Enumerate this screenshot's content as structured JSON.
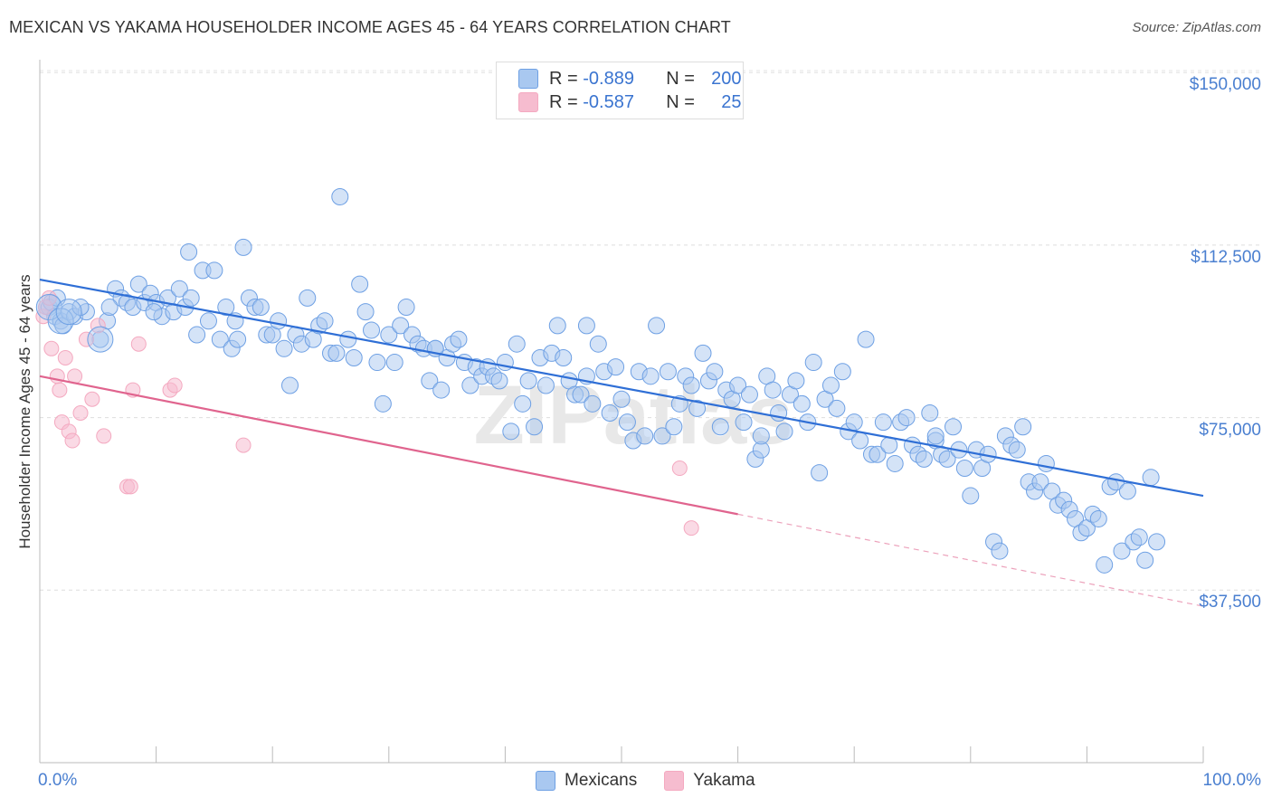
{
  "title": "MEXICAN VS YAKAMA HOUSEHOLDER INCOME AGES 45 - 64 YEARS CORRELATION CHART",
  "source": "Source: ZipAtlas.com",
  "watermark": "ZIPatlas",
  "legend_top": {
    "rows": [
      {
        "r_label": "R =",
        "r_value": "-0.889",
        "n_label": "N =",
        "n_value": "200",
        "color": "#a9c8f0"
      },
      {
        "r_label": "R =",
        "r_value": "-0.587",
        "n_label": "N =",
        "n_value": "25",
        "color": "#f6bccf"
      }
    ]
  },
  "legend_bottom": [
    {
      "label": "Mexicans",
      "color": "#a9c8f0"
    },
    {
      "label": "Yakama",
      "color": "#f6bccf"
    }
  ],
  "chart_data": {
    "type": "scatter",
    "xlabel": "",
    "ylabel": "Householder Income Ages 45 - 64 years",
    "xlim": [
      0,
      100
    ],
    "ylim": [
      0,
      152000
    ],
    "x_tick_labels": [
      "0.0%",
      "100.0%"
    ],
    "y_ticks": [
      37500,
      75000,
      112500,
      150000
    ],
    "y_tick_labels": [
      "$37,500",
      "$75,000",
      "$112,500",
      "$150,000"
    ],
    "grid": true,
    "legend_position": "top-center",
    "series": [
      {
        "name": "Mexicans",
        "color": "#6ea0e4",
        "trend": {
          "x": [
            0,
            100
          ],
          "y": [
            105000,
            58000
          ],
          "color": "#2f6fd6"
        },
        "points": [
          [
            0.8,
            99000
          ],
          [
            1.0,
            100000
          ],
          [
            1.3,
            97000
          ],
          [
            1.8,
            96000
          ],
          [
            2.0,
            95000
          ],
          [
            2.5,
            98000
          ],
          [
            3.0,
            97000
          ],
          [
            4.0,
            98000
          ],
          [
            5.2,
            92000
          ],
          [
            5.8,
            96000
          ],
          [
            6.5,
            103000
          ],
          [
            7.0,
            101000
          ],
          [
            7.5,
            100000
          ],
          [
            8.0,
            99000
          ],
          [
            8.5,
            104000
          ],
          [
            9.0,
            100000
          ],
          [
            9.5,
            102000
          ],
          [
            10.0,
            100000
          ],
          [
            10.5,
            97000
          ],
          [
            11.0,
            101000
          ],
          [
            11.5,
            98000
          ],
          [
            12.0,
            103000
          ],
          [
            12.5,
            99000
          ],
          [
            12.8,
            111000
          ],
          [
            13.0,
            101000
          ],
          [
            13.5,
            93000
          ],
          [
            14.0,
            107000
          ],
          [
            14.5,
            96000
          ],
          [
            15.0,
            107000
          ],
          [
            15.5,
            92000
          ],
          [
            16.0,
            99000
          ],
          [
            16.5,
            90000
          ],
          [
            17.0,
            92000
          ],
          [
            17.5,
            112000
          ],
          [
            18.0,
            101000
          ],
          [
            18.5,
            99000
          ],
          [
            19.0,
            99000
          ],
          [
            19.5,
            93000
          ],
          [
            20.0,
            93000
          ],
          [
            20.5,
            96000
          ],
          [
            21.0,
            90000
          ],
          [
            21.5,
            82000
          ],
          [
            22.0,
            93000
          ],
          [
            22.5,
            91000
          ],
          [
            23.0,
            101000
          ],
          [
            23.5,
            92000
          ],
          [
            24.0,
            95000
          ],
          [
            24.5,
            96000
          ],
          [
            25.0,
            89000
          ],
          [
            25.5,
            89000
          ],
          [
            25.8,
            123000
          ],
          [
            26.5,
            92000
          ],
          [
            27.0,
            88000
          ],
          [
            27.5,
            104000
          ],
          [
            28.0,
            98000
          ],
          [
            28.5,
            94000
          ],
          [
            29.0,
            87000
          ],
          [
            29.5,
            78000
          ],
          [
            30.0,
            93000
          ],
          [
            30.5,
            87000
          ],
          [
            31.0,
            95000
          ],
          [
            31.5,
            99000
          ],
          [
            32.0,
            93000
          ],
          [
            32.5,
            91000
          ],
          [
            33.0,
            90000
          ],
          [
            33.5,
            83000
          ],
          [
            34.0,
            90000
          ],
          [
            34.5,
            81000
          ],
          [
            35.0,
            88000
          ],
          [
            35.5,
            91000
          ],
          [
            36.0,
            92000
          ],
          [
            36.5,
            87000
          ],
          [
            37.0,
            82000
          ],
          [
            37.5,
            86000
          ],
          [
            38.0,
            84000
          ],
          [
            38.5,
            86000
          ],
          [
            39.0,
            84000
          ],
          [
            39.5,
            83000
          ],
          [
            40.0,
            87000
          ],
          [
            40.5,
            72000
          ],
          [
            41.0,
            91000
          ],
          [
            41.5,
            78000
          ],
          [
            42.0,
            83000
          ],
          [
            42.5,
            73000
          ],
          [
            43.0,
            88000
          ],
          [
            43.5,
            82000
          ],
          [
            44.0,
            89000
          ],
          [
            44.5,
            95000
          ],
          [
            45.0,
            88000
          ],
          [
            45.5,
            83000
          ],
          [
            46.0,
            80000
          ],
          [
            46.5,
            80000
          ],
          [
            47.0,
            95000
          ],
          [
            47.5,
            78000
          ],
          [
            48.0,
            91000
          ],
          [
            48.5,
            85000
          ],
          [
            49.0,
            76000
          ],
          [
            49.5,
            86000
          ],
          [
            50.0,
            79000
          ],
          [
            50.5,
            74000
          ],
          [
            51.0,
            70000
          ],
          [
            51.5,
            85000
          ],
          [
            52.0,
            71000
          ],
          [
            52.5,
            84000
          ],
          [
            53.0,
            95000
          ],
          [
            53.5,
            71000
          ],
          [
            54.0,
            85000
          ],
          [
            54.5,
            73000
          ],
          [
            55.0,
            78000
          ],
          [
            55.5,
            84000
          ],
          [
            56.0,
            82000
          ],
          [
            56.5,
            77000
          ],
          [
            57.0,
            89000
          ],
          [
            57.5,
            83000
          ],
          [
            58.0,
            85000
          ],
          [
            58.5,
            73000
          ],
          [
            59.0,
            81000
          ],
          [
            59.5,
            79000
          ],
          [
            60.0,
            82000
          ],
          [
            60.5,
            74000
          ],
          [
            61.0,
            80000
          ],
          [
            61.5,
            66000
          ],
          [
            62.0,
            68000
          ],
          [
            62.5,
            84000
          ],
          [
            63.0,
            81000
          ],
          [
            63.5,
            76000
          ],
          [
            64.0,
            72000
          ],
          [
            64.5,
            80000
          ],
          [
            65.0,
            83000
          ],
          [
            65.5,
            78000
          ],
          [
            66.0,
            74000
          ],
          [
            66.5,
            87000
          ],
          [
            67.0,
            63000
          ],
          [
            67.5,
            79000
          ],
          [
            68.0,
            82000
          ],
          [
            68.5,
            77000
          ],
          [
            69.0,
            85000
          ],
          [
            69.5,
            72000
          ],
          [
            70.0,
            74000
          ],
          [
            70.5,
            70000
          ],
          [
            71.0,
            92000
          ],
          [
            71.5,
            67000
          ],
          [
            72.0,
            67000
          ],
          [
            72.5,
            74000
          ],
          [
            73.0,
            69000
          ],
          [
            73.5,
            65000
          ],
          [
            74.0,
            74000
          ],
          [
            74.5,
            75000
          ],
          [
            75.0,
            69000
          ],
          [
            75.5,
            67000
          ],
          [
            76.0,
            66000
          ],
          [
            76.5,
            76000
          ],
          [
            77.0,
            70000
          ],
          [
            77.5,
            67000
          ],
          [
            78.0,
            66000
          ],
          [
            78.5,
            73000
          ],
          [
            79.0,
            68000
          ],
          [
            79.5,
            64000
          ],
          [
            80.0,
            58000
          ],
          [
            80.5,
            68000
          ],
          [
            81.0,
            64000
          ],
          [
            81.5,
            67000
          ],
          [
            82.0,
            48000
          ],
          [
            82.5,
            46000
          ],
          [
            83.0,
            71000
          ],
          [
            83.5,
            69000
          ],
          [
            84.0,
            68000
          ],
          [
            84.5,
            73000
          ],
          [
            85.0,
            61000
          ],
          [
            85.5,
            59000
          ],
          [
            86.0,
            61000
          ],
          [
            86.5,
            65000
          ],
          [
            87.0,
            59000
          ],
          [
            87.5,
            56000
          ],
          [
            88.0,
            57000
          ],
          [
            88.5,
            55000
          ],
          [
            89.0,
            53000
          ],
          [
            89.5,
            50000
          ],
          [
            90.0,
            51000
          ],
          [
            90.5,
            54000
          ],
          [
            91.0,
            53000
          ],
          [
            91.5,
            43000
          ],
          [
            92.0,
            60000
          ],
          [
            92.5,
            61000
          ],
          [
            93.0,
            46000
          ],
          [
            93.5,
            59000
          ],
          [
            94.0,
            48000
          ],
          [
            94.5,
            49000
          ],
          [
            95.0,
            44000
          ],
          [
            95.5,
            62000
          ],
          [
            96.0,
            48000
          ],
          [
            1.5,
            101000
          ],
          [
            3.5,
            99000
          ],
          [
            6.0,
            99000
          ],
          [
            9.8,
            98000
          ],
          [
            16.8,
            96000
          ],
          [
            34.0,
            90000
          ],
          [
            47.0,
            84000
          ],
          [
            62.0,
            71000
          ],
          [
            77.0,
            71000
          ]
        ]
      },
      {
        "name": "Yakama",
        "color": "#f4a9c0",
        "trend": {
          "x": [
            0,
            60,
            100
          ],
          "y": [
            84000,
            54000,
            34000
          ],
          "color": "#e0648e"
        },
        "points": [
          [
            0.3,
            97000
          ],
          [
            0.5,
            99000
          ],
          [
            0.8,
            101000
          ],
          [
            1.0,
            90000
          ],
          [
            1.5,
            84000
          ],
          [
            1.7,
            81000
          ],
          [
            1.9,
            74000
          ],
          [
            2.2,
            88000
          ],
          [
            2.5,
            72000
          ],
          [
            2.8,
            70000
          ],
          [
            3.0,
            84000
          ],
          [
            3.5,
            76000
          ],
          [
            4.0,
            92000
          ],
          [
            4.5,
            79000
          ],
          [
            5.0,
            95000
          ],
          [
            5.5,
            71000
          ],
          [
            7.5,
            60000
          ],
          [
            7.8,
            60000
          ],
          [
            8.0,
            81000
          ],
          [
            8.5,
            91000
          ],
          [
            11.2,
            81000
          ],
          [
            11.6,
            82000
          ],
          [
            17.5,
            69000
          ],
          [
            55.0,
            64000
          ],
          [
            56.0,
            51000
          ]
        ]
      }
    ]
  }
}
